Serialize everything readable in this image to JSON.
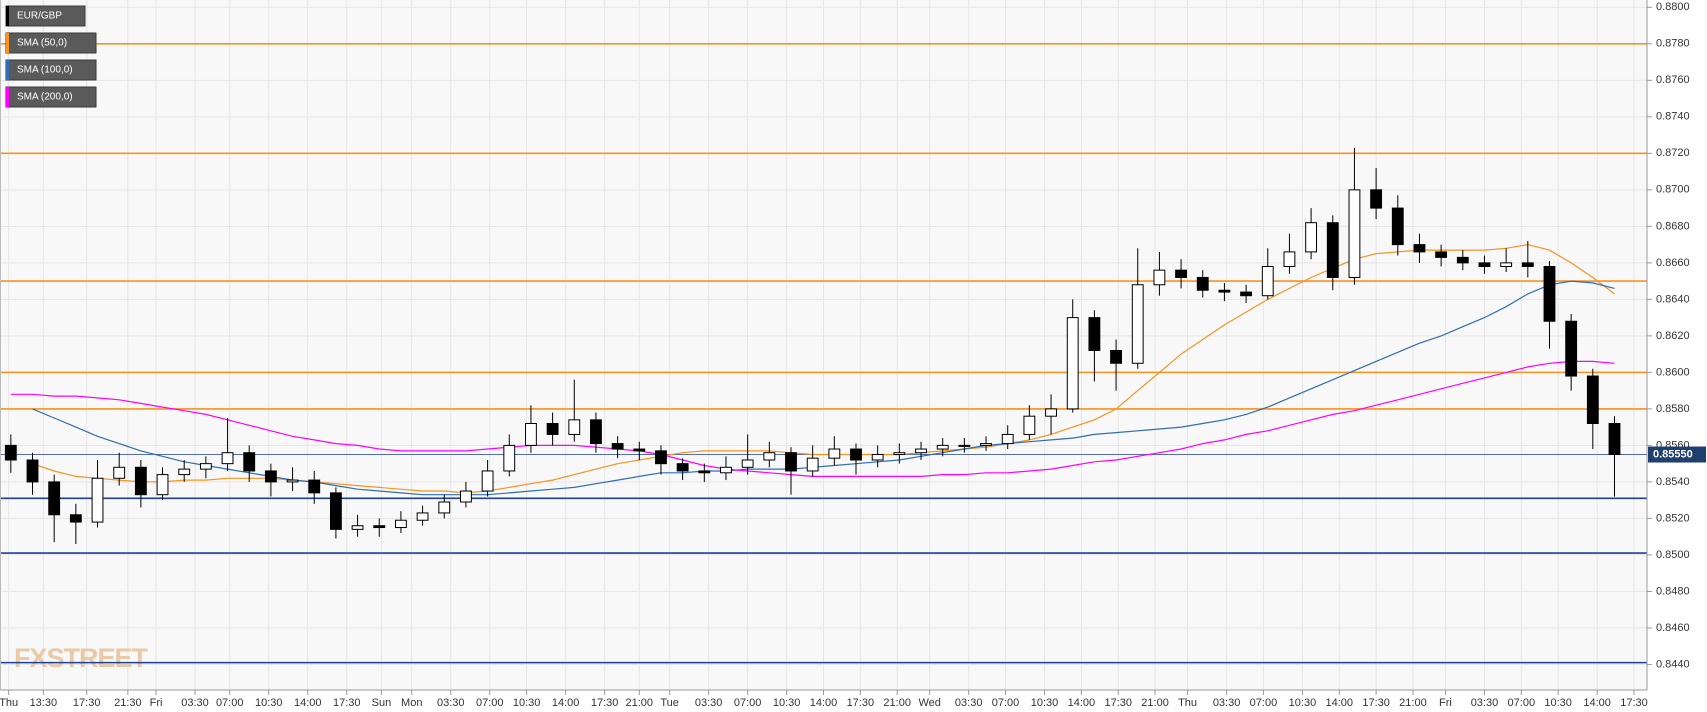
{
  "chart_data": {
    "type": "candlestick",
    "watermark": "FXSTREET",
    "legend": "top-left",
    "grid": true,
    "xlim": [
      0,
      76
    ],
    "ylim": [
      0.8426,
      0.8804
    ],
    "xticks": [
      {
        "value": 0.4,
        "label": "Thu"
      },
      {
        "value": 2.0,
        "label": "13:30"
      },
      {
        "value": 4.0,
        "label": "17:30"
      },
      {
        "value": 5.9,
        "label": "21:30"
      },
      {
        "value": 7.2,
        "label": "Fri"
      },
      {
        "value": 9.0,
        "label": "03:30"
      },
      {
        "value": 10.6,
        "label": "07:00"
      },
      {
        "value": 12.4,
        "label": "10:30"
      },
      {
        "value": 14.2,
        "label": "14:00"
      },
      {
        "value": 16.0,
        "label": "17:30"
      },
      {
        "value": 17.6,
        "label": "Sun"
      },
      {
        "value": 19.0,
        "label": "Mon"
      },
      {
        "value": 20.8,
        "label": "03:30"
      },
      {
        "value": 22.6,
        "label": "07:00"
      },
      {
        "value": 24.3,
        "label": "10:30"
      },
      {
        "value": 26.1,
        "label": "14:00"
      },
      {
        "value": 27.9,
        "label": "17:30"
      },
      {
        "value": 29.5,
        "label": "21:00"
      },
      {
        "value": 30.9,
        "label": "Tue"
      },
      {
        "value": 32.7,
        "label": "03:30"
      },
      {
        "value": 34.5,
        "label": "07:00"
      },
      {
        "value": 36.3,
        "label": "10:30"
      },
      {
        "value": 38.0,
        "label": "14:00"
      },
      {
        "value": 39.7,
        "label": "17:30"
      },
      {
        "value": 41.4,
        "label": "21:00"
      },
      {
        "value": 42.9,
        "label": "Wed"
      },
      {
        "value": 44.7,
        "label": "03:30"
      },
      {
        "value": 46.4,
        "label": "07:00"
      },
      {
        "value": 48.2,
        "label": "10:30"
      },
      {
        "value": 49.9,
        "label": "14:00"
      },
      {
        "value": 51.6,
        "label": "17:30"
      },
      {
        "value": 53.3,
        "label": "21:00"
      },
      {
        "value": 54.8,
        "label": "Thu"
      },
      {
        "value": 56.6,
        "label": "03:30"
      },
      {
        "value": 58.3,
        "label": "07:00"
      },
      {
        "value": 60.1,
        "label": "10:30"
      },
      {
        "value": 61.8,
        "label": "14:00"
      },
      {
        "value": 63.5,
        "label": "17:30"
      },
      {
        "value": 65.2,
        "label": "21:00"
      },
      {
        "value": 66.7,
        "label": "Fri"
      },
      {
        "value": 68.5,
        "label": "03:30"
      },
      {
        "value": 70.2,
        "label": "07:00"
      },
      {
        "value": 71.9,
        "label": "10:30"
      },
      {
        "value": 73.7,
        "label": "14:00"
      },
      {
        "value": 75.4,
        "label": "17:30"
      }
    ],
    "yticks": [
      {
        "value": 0.844,
        "label": "0.8440"
      },
      {
        "value": 0.846,
        "label": "0.8460"
      },
      {
        "value": 0.848,
        "label": "0.8480"
      },
      {
        "value": 0.85,
        "label": "0.8500"
      },
      {
        "value": 0.852,
        "label": "0.8520"
      },
      {
        "value": 0.854,
        "label": "0.8540"
      },
      {
        "value": 0.856,
        "label": "0.8560"
      },
      {
        "value": 0.858,
        "label": "0.8580"
      },
      {
        "value": 0.86,
        "label": "0.8600"
      },
      {
        "value": 0.862,
        "label": "0.8620"
      },
      {
        "value": 0.864,
        "label": "0.8640"
      },
      {
        "value": 0.866,
        "label": "0.8660"
      },
      {
        "value": 0.868,
        "label": "0.8680"
      },
      {
        "value": 0.87,
        "label": "0.8700"
      },
      {
        "value": 0.872,
        "label": "0.8720"
      },
      {
        "value": 0.874,
        "label": "0.8740"
      },
      {
        "value": 0.876,
        "label": "0.8760"
      },
      {
        "value": 0.878,
        "label": "0.8780"
      },
      {
        "value": 0.88,
        "label": "0.8800"
      }
    ],
    "candles": {
      "name": "EUR/GBP",
      "color": "#000000",
      "up_color": "#ffffff",
      "open": [
        0.856,
        0.8552,
        0.854,
        0.8522,
        0.8518,
        0.8542,
        0.8548,
        0.8533,
        0.8544,
        0.8547,
        0.855,
        0.8556,
        0.8546,
        0.854,
        0.8541,
        0.8534,
        0.8514,
        0.8516,
        0.8515,
        0.8519,
        0.8523,
        0.8529,
        0.8535,
        0.8546,
        0.856,
        0.8572,
        0.8566,
        0.8574,
        0.8561,
        0.8558,
        0.8557,
        0.855,
        0.8546,
        0.8545,
        0.8548,
        0.8552,
        0.8556,
        0.8546,
        0.8553,
        0.8558,
        0.8552,
        0.8555,
        0.8556,
        0.8558,
        0.856,
        0.856,
        0.8561,
        0.8566,
        0.8576,
        0.858,
        0.863,
        0.8612,
        0.8605,
        0.8648,
        0.8656,
        0.8652,
        0.8645,
        0.8644,
        0.8642,
        0.8658,
        0.8666,
        0.8682,
        0.8652,
        0.87,
        0.869,
        0.867,
        0.8666,
        0.8663,
        0.866,
        0.8658,
        0.866,
        0.8658,
        0.8628,
        0.8598,
        0.8572
      ],
      "high": [
        0.8566,
        0.8556,
        0.8544,
        0.8528,
        0.8552,
        0.8556,
        0.8552,
        0.8548,
        0.8552,
        0.8554,
        0.8575,
        0.856,
        0.855,
        0.8548,
        0.8546,
        0.8537,
        0.8522,
        0.852,
        0.8524,
        0.8527,
        0.8533,
        0.854,
        0.8552,
        0.8566,
        0.8582,
        0.8578,
        0.8596,
        0.8578,
        0.8565,
        0.8562,
        0.856,
        0.8553,
        0.855,
        0.8554,
        0.8566,
        0.8562,
        0.8559,
        0.856,
        0.8565,
        0.8561,
        0.856,
        0.8561,
        0.8562,
        0.8564,
        0.8564,
        0.8565,
        0.8571,
        0.8582,
        0.8588,
        0.864,
        0.8634,
        0.8618,
        0.8668,
        0.8666,
        0.8662,
        0.8656,
        0.8649,
        0.8648,
        0.8668,
        0.8676,
        0.869,
        0.8686,
        0.8723,
        0.8712,
        0.8697,
        0.8676,
        0.867,
        0.8667,
        0.8664,
        0.8668,
        0.8672,
        0.8661,
        0.8632,
        0.8602,
        0.8576
      ],
      "low": [
        0.8545,
        0.8533,
        0.8507,
        0.8506,
        0.8515,
        0.8538,
        0.8526,
        0.853,
        0.854,
        0.8542,
        0.8546,
        0.854,
        0.8532,
        0.8535,
        0.8528,
        0.8509,
        0.851,
        0.851,
        0.8512,
        0.8516,
        0.852,
        0.8526,
        0.8532,
        0.8543,
        0.8556,
        0.856,
        0.8562,
        0.8556,
        0.8553,
        0.8552,
        0.8544,
        0.8541,
        0.854,
        0.8541,
        0.8544,
        0.8548,
        0.8533,
        0.8543,
        0.8549,
        0.8544,
        0.8548,
        0.855,
        0.8552,
        0.8554,
        0.8556,
        0.8557,
        0.8558,
        0.8563,
        0.8566,
        0.8578,
        0.8595,
        0.859,
        0.8602,
        0.8642,
        0.8646,
        0.8641,
        0.8639,
        0.8638,
        0.864,
        0.8654,
        0.8662,
        0.8645,
        0.8648,
        0.8684,
        0.8664,
        0.866,
        0.8658,
        0.8656,
        0.8654,
        0.8655,
        0.8652,
        0.8613,
        0.859,
        0.8558,
        0.8532
      ],
      "close": [
        0.8552,
        0.854,
        0.8522,
        0.8518,
        0.8542,
        0.8548,
        0.8533,
        0.8544,
        0.8547,
        0.855,
        0.8556,
        0.8546,
        0.854,
        0.8541,
        0.8534,
        0.8514,
        0.8516,
        0.8515,
        0.8519,
        0.8523,
        0.8529,
        0.8535,
        0.8546,
        0.856,
        0.8572,
        0.8566,
        0.8574,
        0.8561,
        0.8558,
        0.8557,
        0.855,
        0.8546,
        0.8545,
        0.8548,
        0.8552,
        0.8556,
        0.8546,
        0.8553,
        0.8558,
        0.8552,
        0.8555,
        0.8556,
        0.8558,
        0.856,
        0.856,
        0.8561,
        0.8566,
        0.8576,
        0.858,
        0.863,
        0.8612,
        0.8605,
        0.8648,
        0.8656,
        0.8652,
        0.8645,
        0.8644,
        0.8642,
        0.8658,
        0.8666,
        0.8682,
        0.8652,
        0.87,
        0.869,
        0.867,
        0.8666,
        0.8663,
        0.866,
        0.8658,
        0.866,
        0.8658,
        0.8628,
        0.8598,
        0.8572,
        0.8555
      ]
    },
    "series": [
      {
        "name": "SMA (50,0)",
        "color": "#f7931e",
        "values": [
          null,
          0.855,
          0.8546,
          0.8543,
          0.8542,
          0.8541,
          0.854,
          0.854,
          0.8541,
          0.8541,
          0.8542,
          0.8542,
          0.8542,
          0.8541,
          0.854,
          0.8539,
          0.8538,
          0.8537,
          0.8536,
          0.8535,
          0.8535,
          0.8534,
          0.8535,
          0.8537,
          0.8539,
          0.8541,
          0.8544,
          0.8547,
          0.855,
          0.8552,
          0.8554,
          0.8556,
          0.8557,
          0.8557,
          0.8557,
          0.8557,
          0.8556,
          0.8555,
          0.8555,
          0.8555,
          0.8555,
          0.8555,
          0.8556,
          0.8557,
          0.8558,
          0.8559,
          0.8561,
          0.8563,
          0.8566,
          0.857,
          0.8574,
          0.858,
          0.859,
          0.86,
          0.861,
          0.8618,
          0.8626,
          0.8633,
          0.864,
          0.8646,
          0.8652,
          0.8657,
          0.8662,
          0.8665,
          0.8666,
          0.8667,
          0.8667,
          0.8667,
          0.8667,
          0.8668,
          0.867,
          0.8667,
          0.866,
          0.8652,
          0.8643
        ]
      },
      {
        "name": "SMA (100,0)",
        "color": "#2f6db5",
        "values": [
          null,
          0.858,
          0.8575,
          0.857,
          0.8565,
          0.8561,
          0.8557,
          0.8554,
          0.8551,
          0.8549,
          0.8547,
          0.8545,
          0.8543,
          0.8541,
          0.854,
          0.8538,
          0.8536,
          0.8535,
          0.8534,
          0.8533,
          0.8533,
          0.8533,
          0.8533,
          0.8534,
          0.8535,
          0.8536,
          0.8537,
          0.8539,
          0.8541,
          0.8543,
          0.8545,
          0.8545,
          0.8546,
          0.8546,
          0.8547,
          0.8547,
          0.8547,
          0.8548,
          0.8549,
          0.855,
          0.8551,
          0.8552,
          0.8554,
          0.8556,
          0.8558,
          0.856,
          0.8561,
          0.8562,
          0.8563,
          0.8564,
          0.8566,
          0.8567,
          0.8568,
          0.8569,
          0.857,
          0.8572,
          0.8574,
          0.8577,
          0.8581,
          0.8586,
          0.8591,
          0.8596,
          0.8601,
          0.8606,
          0.8611,
          0.8616,
          0.862,
          0.8625,
          0.863,
          0.8636,
          0.8643,
          0.8648,
          0.865,
          0.8649,
          0.8646
        ]
      },
      {
        "name": "SMA (200,0)",
        "color": "#ff00ff",
        "values": [
          0.8588,
          0.8588,
          0.8587,
          0.8587,
          0.8586,
          0.8585,
          0.8583,
          0.8581,
          0.8579,
          0.8577,
          0.8574,
          0.8571,
          0.8568,
          0.8565,
          0.8563,
          0.8561,
          0.856,
          0.8558,
          0.8557,
          0.8557,
          0.8557,
          0.8557,
          0.8558,
          0.8559,
          0.856,
          0.856,
          0.856,
          0.8559,
          0.8558,
          0.8557,
          0.8555,
          0.8552,
          0.8549,
          0.8547,
          0.8546,
          0.8545,
          0.8544,
          0.8543,
          0.8543,
          0.8543,
          0.8543,
          0.8543,
          0.8543,
          0.8544,
          0.8544,
          0.8545,
          0.8545,
          0.8546,
          0.8547,
          0.8549,
          0.8551,
          0.8552,
          0.8554,
          0.8556,
          0.8558,
          0.8561,
          0.8563,
          0.8566,
          0.8568,
          0.8571,
          0.8574,
          0.8577,
          0.8579,
          0.8582,
          0.8585,
          0.8588,
          0.8591,
          0.8594,
          0.8597,
          0.86,
          0.8603,
          0.8605,
          0.8606,
          0.8606,
          0.8605
        ]
      }
    ],
    "levels": [
      {
        "value": 0.878,
        "color": "#f7931e"
      },
      {
        "value": 0.872,
        "color": "#f7931e"
      },
      {
        "value": 0.865,
        "color": "#f7931e"
      },
      {
        "value": 0.86,
        "color": "#f7931e"
      },
      {
        "value": 0.858,
        "color": "#f7931e"
      },
      {
        "value": 0.8531,
        "color": "#1f3f8f"
      },
      {
        "value": 0.8501,
        "color": "#1f3f8f"
      },
      {
        "value": 0.8441,
        "color": "#1f3f8f"
      }
    ],
    "last_price": 0.8555,
    "last_price_label": "0.85550"
  }
}
